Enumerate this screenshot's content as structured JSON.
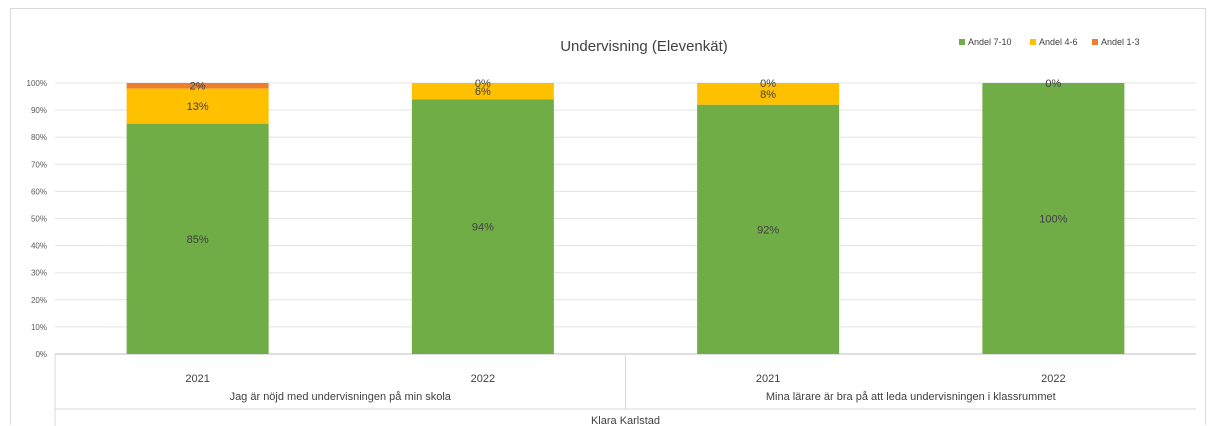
{
  "chart_data": {
    "type": "bar",
    "stacked": true,
    "title": "Undervisning (Elevenkät)",
    "y_ticks": [
      "0%",
      "10%",
      "20%",
      "30%",
      "40%",
      "50%",
      "60%",
      "70%",
      "80%",
      "90%",
      "100%"
    ],
    "ylim": [
      0,
      100
    ],
    "grid": true,
    "legend_position": "top-right",
    "categories": [
      "2021",
      "2022",
      "2021",
      "2022"
    ],
    "groups": [
      "Jag är nöjd med undervisningen på min skola",
      "Mina lärare är bra på att leda undervisningen i klassrummet"
    ],
    "outer_group": "Klara Karlstad",
    "series": [
      {
        "name": "Andel 7-10",
        "color": "#70ad47",
        "values": [
          85,
          94,
          92,
          100
        ],
        "labels": [
          "85%",
          "94%",
          "92%",
          "100%"
        ]
      },
      {
        "name": "Andel 4-6",
        "color": "#ffc000",
        "values": [
          13,
          6,
          8,
          0
        ],
        "labels": [
          "13%",
          "6%",
          "8%",
          ""
        ]
      },
      {
        "name": "Andel 1-3",
        "color": "#ed7d31",
        "values": [
          2,
          0,
          0,
          0
        ],
        "labels": [
          "2%",
          "0%",
          "0%",
          "0%"
        ]
      }
    ]
  }
}
